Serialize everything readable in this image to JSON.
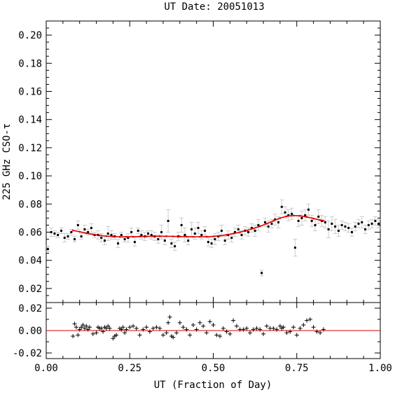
{
  "chart_data": [
    {
      "type": "scatter",
      "title": "UT Date: 20051013",
      "ylabel": "225 GHz CSO-τ",
      "xlabel": "",
      "xlim": [
        0,
        1
      ],
      "ylim": [
        0.01,
        0.21
      ],
      "yticks": [
        0.02,
        0.04,
        0.06,
        0.08,
        0.1,
        0.12,
        0.14,
        0.16,
        0.18,
        0.2
      ],
      "ytick_labels": [
        "0.02",
        "0.04",
        "0.06",
        "0.08",
        "0.10",
        "0.12",
        "0.14",
        "0.16",
        "0.18",
        "0.20"
      ],
      "xticks": [
        0,
        0.25,
        0.5,
        0.75,
        1.0
      ],
      "colors": {
        "points": "#000000",
        "errorbars": "#cccccc",
        "fit": "#e00000"
      },
      "series": [
        {
          "kind": "measurements",
          "x": [
            0.005,
            0.015,
            0.025,
            0.035,
            0.045,
            0.055,
            0.065,
            0.075,
            0.085,
            0.095,
            0.105,
            0.115,
            0.125,
            0.135,
            0.145,
            0.155,
            0.165,
            0.175,
            0.185,
            0.195,
            0.205,
            0.215,
            0.225,
            0.235,
            0.245,
            0.255,
            0.265,
            0.275,
            0.285,
            0.295,
            0.305,
            0.315,
            0.325,
            0.335,
            0.345,
            0.355,
            0.365,
            0.375,
            0.385,
            0.395,
            0.405,
            0.415,
            0.425,
            0.435,
            0.445,
            0.455,
            0.465,
            0.475,
            0.485,
            0.495,
            0.505,
            0.515,
            0.525,
            0.535,
            0.545,
            0.555,
            0.565,
            0.575,
            0.585,
            0.595,
            0.605,
            0.615,
            0.625,
            0.635,
            0.645,
            0.655,
            0.665,
            0.675,
            0.685,
            0.695,
            0.705,
            0.715,
            0.725,
            0.735,
            0.745,
            0.755,
            0.765,
            0.775,
            0.785,
            0.795,
            0.805,
            0.815,
            0.825,
            0.835,
            0.845,
            0.855,
            0.865,
            0.875,
            0.885,
            0.895,
            0.905,
            0.915,
            0.925,
            0.935,
            0.945,
            0.955,
            0.965,
            0.975,
            0.985,
            0.995
          ],
          "y": [
            0.048,
            0.06,
            0.059,
            0.058,
            0.061,
            0.056,
            0.057,
            0.06,
            0.055,
            0.065,
            0.057,
            0.062,
            0.06,
            0.063,
            0.058,
            0.058,
            0.056,
            0.054,
            0.059,
            0.058,
            0.057,
            0.052,
            0.058,
            0.055,
            0.056,
            0.06,
            0.053,
            0.061,
            0.058,
            0.057,
            0.059,
            0.058,
            0.057,
            0.055,
            0.06,
            0.054,
            0.068,
            0.052,
            0.05,
            0.057,
            0.065,
            0.058,
            0.054,
            0.062,
            0.059,
            0.063,
            0.058,
            0.061,
            0.053,
            0.052,
            0.055,
            0.057,
            0.061,
            0.054,
            0.058,
            0.056,
            0.06,
            0.062,
            0.058,
            0.061,
            0.06,
            0.063,
            0.061,
            0.065,
            0.031,
            0.067,
            0.064,
            0.066,
            0.069,
            0.067,
            0.078,
            0.074,
            0.072,
            0.073,
            0.049,
            0.068,
            0.07,
            0.072,
            0.076,
            0.068,
            0.065,
            0.071,
            0.068,
            0.067,
            0.062,
            0.066,
            0.064,
            0.061,
            0.065,
            0.064,
            0.063,
            0.06,
            0.064,
            0.066,
            0.067,
            0.062,
            0.065,
            0.066,
            0.068,
            0.066
          ],
          "yerr": [
            0.002,
            0.003,
            0.002,
            0.002,
            0.002,
            0.003,
            0.002,
            0.002,
            0.002,
            0.003,
            0.002,
            0.003,
            0.002,
            0.003,
            0.002,
            0.003,
            0.003,
            0.003,
            0.005,
            0.003,
            0.002,
            0.003,
            0.002,
            0.002,
            0.003,
            0.003,
            0.003,
            0.002,
            0.003,
            0.003,
            0.002,
            0.003,
            0.003,
            0.003,
            0.005,
            0.003,
            0.008,
            0.003,
            0.003,
            0.003,
            0.005,
            0.005,
            0.003,
            0.005,
            0.004,
            0.004,
            0.003,
            0.003,
            0.003,
            0.003,
            0.004,
            0.003,
            0.004,
            0.003,
            0.003,
            0.003,
            0.003,
            0.003,
            0.003,
            0.003,
            0.003,
            0.003,
            0.004,
            0.004,
            0.002,
            0.003,
            0.004,
            0.003,
            0.004,
            0.004,
            0.005,
            0.004,
            0.004,
            0.004,
            0.006,
            0.004,
            0.005,
            0.004,
            0.004,
            0.004,
            0.004,
            0.005,
            0.004,
            0.004,
            0.006,
            0.005,
            0.005,
            0.004,
            0.003,
            0.003,
            0.003,
            0.003,
            0.003,
            0.003,
            0.004,
            0.003,
            0.003,
            0.003,
            0.003,
            0.003
          ]
        },
        {
          "kind": "fit",
          "x": [
            0.08,
            0.1,
            0.12,
            0.14,
            0.16,
            0.18,
            0.2,
            0.22,
            0.24,
            0.26,
            0.28,
            0.3,
            0.32,
            0.34,
            0.36,
            0.38,
            0.4,
            0.42,
            0.44,
            0.46,
            0.48,
            0.5,
            0.52,
            0.54,
            0.56,
            0.58,
            0.6,
            0.62,
            0.64,
            0.66,
            0.68,
            0.7,
            0.72,
            0.74,
            0.76,
            0.78,
            0.8,
            0.82,
            0.83
          ],
          "y": [
            0.0612,
            0.0603,
            0.0593,
            0.0584,
            0.0577,
            0.0572,
            0.0569,
            0.0567,
            0.0567,
            0.0568,
            0.0569,
            0.057,
            0.0571,
            0.0571,
            0.0571,
            0.057,
            0.0569,
            0.0568,
            0.0567,
            0.0567,
            0.0568,
            0.057,
            0.0575,
            0.0581,
            0.059,
            0.06,
            0.0612,
            0.0626,
            0.0642,
            0.066,
            0.068,
            0.07,
            0.0713,
            0.0718,
            0.0716,
            0.0708,
            0.0697,
            0.0686,
            0.0682
          ]
        }
      ]
    },
    {
      "type": "scatter",
      "xlabel": "UT (Fraction of Day)",
      "xlim": [
        0,
        1
      ],
      "ylim": [
        -0.025,
        0.025
      ],
      "yticks": [
        -0.02,
        0.0,
        0.02
      ],
      "ytick_labels": [
        "-0.02",
        "0.00",
        "0.02"
      ],
      "xticks": [
        0,
        0.25,
        0.5,
        0.75,
        1.0
      ],
      "xtick_labels": [
        "0.00",
        "0.25",
        "0.50",
        "0.75",
        "1.00"
      ],
      "reference_line": 0,
      "colors": {
        "points": "#000000",
        "zero_line": "#e00000"
      },
      "series": [
        {
          "kind": "residuals",
          "x": [
            0.08,
            0.085,
            0.09,
            0.095,
            0.1,
            0.105,
            0.11,
            0.115,
            0.12,
            0.125,
            0.13,
            0.14,
            0.15,
            0.155,
            0.16,
            0.165,
            0.17,
            0.175,
            0.18,
            0.185,
            0.19,
            0.2,
            0.205,
            0.21,
            0.22,
            0.225,
            0.23,
            0.235,
            0.24,
            0.25,
            0.26,
            0.27,
            0.28,
            0.29,
            0.3,
            0.31,
            0.32,
            0.33,
            0.34,
            0.35,
            0.36,
            0.365,
            0.37,
            0.375,
            0.38,
            0.39,
            0.4,
            0.41,
            0.42,
            0.43,
            0.44,
            0.45,
            0.46,
            0.47,
            0.48,
            0.49,
            0.5,
            0.51,
            0.52,
            0.53,
            0.54,
            0.55,
            0.56,
            0.57,
            0.58,
            0.59,
            0.6,
            0.61,
            0.62,
            0.63,
            0.64,
            0.65,
            0.66,
            0.67,
            0.68,
            0.69,
            0.7,
            0.705,
            0.71,
            0.72,
            0.73,
            0.74,
            0.75,
            0.76,
            0.77,
            0.78,
            0.79,
            0.8,
            0.81,
            0.82,
            0.83
          ],
          "y": [
            -0.005,
            0.006,
            0.003,
            -0.004,
            0.001,
            0.003,
            0.005,
            0.002,
            0.004,
            0.001,
            0.003,
            -0.003,
            -0.002,
            0.003,
            0.002,
            0.002,
            -0.001,
            0.003,
            0.002,
            0.004,
            0.002,
            -0.007,
            -0.005,
            -0.004,
            0.002,
            0.001,
            0.003,
            -0.002,
            0.001,
            0.003,
            0.004,
            0.002,
            -0.004,
            0.001,
            0.003,
            -0.001,
            0.002,
            0.003,
            0.002,
            -0.004,
            -0.002,
            0.007,
            0.012,
            -0.005,
            -0.006,
            -0.002,
            0.007,
            0.003,
            0.001,
            -0.004,
            0.005,
            0.001,
            0.007,
            0.004,
            -0.002,
            0.008,
            0.005,
            -0.004,
            -0.005,
            0.002,
            -0.001,
            -0.003,
            0.009,
            0.004,
            0.001,
            0.001,
            0.002,
            -0.002,
            0.001,
            0.002,
            0.001,
            -0.003,
            0.004,
            0.002,
            0.002,
            0.001,
            0.004,
            0.002,
            0.003,
            -0.002,
            -0.001,
            0.003,
            -0.004,
            0.002,
            0.005,
            0.009,
            0.01,
            0.003,
            -0.001,
            -0.002,
            0.001
          ]
        }
      ]
    }
  ]
}
